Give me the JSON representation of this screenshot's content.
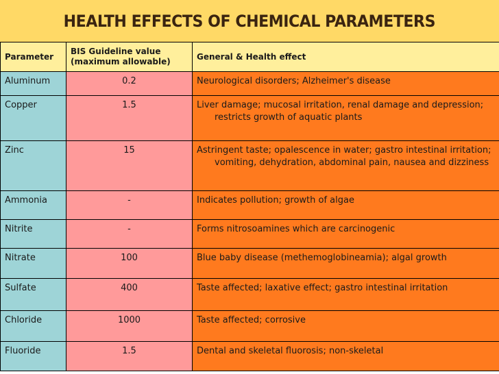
{
  "title": "HEALTH EFFECTS OF CHEMICAL PARAMETERS",
  "headers": {
    "parameter": "Parameter",
    "guideline_line1": "BIS Guideline value",
    "guideline_line2": "(maximum allowable)",
    "effect": "General & Health effect"
  },
  "rows": [
    {
      "parameter": "Aluminum",
      "value": "0.2",
      "effect": "Neurological disorders; Alzheimer's disease"
    },
    {
      "parameter": "Copper",
      "value": "1.5",
      "effect": "Liver damage; mucosal irritation, renal damage and depression; restricts growth of aquatic plants"
    },
    {
      "parameter": "Zinc",
      "value": "15",
      "effect": "Astringent taste; opalescence in water; gastro intestinal irritation; vomiting, dehydration, abdominal pain, nausea and dizziness"
    },
    {
      "parameter": "Ammonia",
      "value": "-",
      "effect": "Indicates pollution; growth of algae"
    },
    {
      "parameter": "Nitrite",
      "value": "-",
      "effect": "Forms nitrosoamines which are carcinogenic"
    },
    {
      "parameter": "Nitrate",
      "value": "100",
      "effect": "Blue baby disease (methemoglobineamia); algal growth"
    },
    {
      "parameter": "Sulfate",
      "value": "400",
      "effect": "Taste affected; laxative effect; gastro intestinal irritation"
    },
    {
      "parameter": "Chloride",
      "value": "1000",
      "effect": "Taste affected; corrosive"
    },
    {
      "parameter": "Fluoride",
      "value": "1.5",
      "effect": "Dental and skeletal fluorosis; non-skeletal"
    }
  ],
  "colors": {
    "title_background": "#ffd966",
    "header_background": "#ffef9c",
    "parameter_column": "#9ed4d7",
    "value_column": "#ff9a9a",
    "effect_column": "#ff7a1e"
  }
}
